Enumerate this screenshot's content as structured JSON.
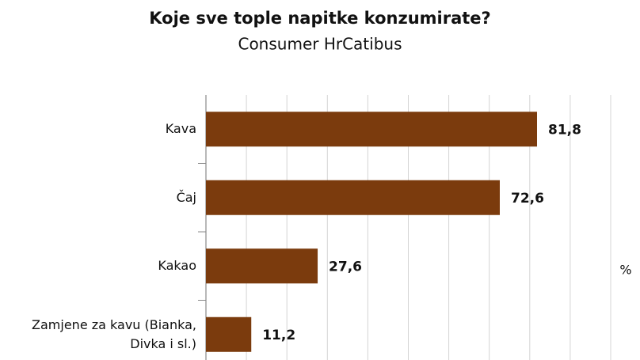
{
  "chart_data": {
    "type": "bar",
    "orientation": "horizontal",
    "title": "Koje sve tople napitke konzumirate?",
    "subtitle": "Consumer HrCatibus",
    "x_label": "%",
    "categories": [
      "Kava",
      "Čaj",
      "Kakao",
      "Zamjene za kavu (Bianka, Divka i sl.)"
    ],
    "values": [
      81.8,
      72.6,
      27.6,
      11.2
    ],
    "value_labels": [
      "81,8",
      "72,6",
      "27,6",
      "11,2"
    ],
    "color": "#7b3b0d",
    "xlim": [
      0,
      100
    ],
    "xticks": [
      0,
      10,
      20,
      30,
      40,
      50,
      60,
      70,
      80,
      90,
      100
    ],
    "grid": true
  }
}
